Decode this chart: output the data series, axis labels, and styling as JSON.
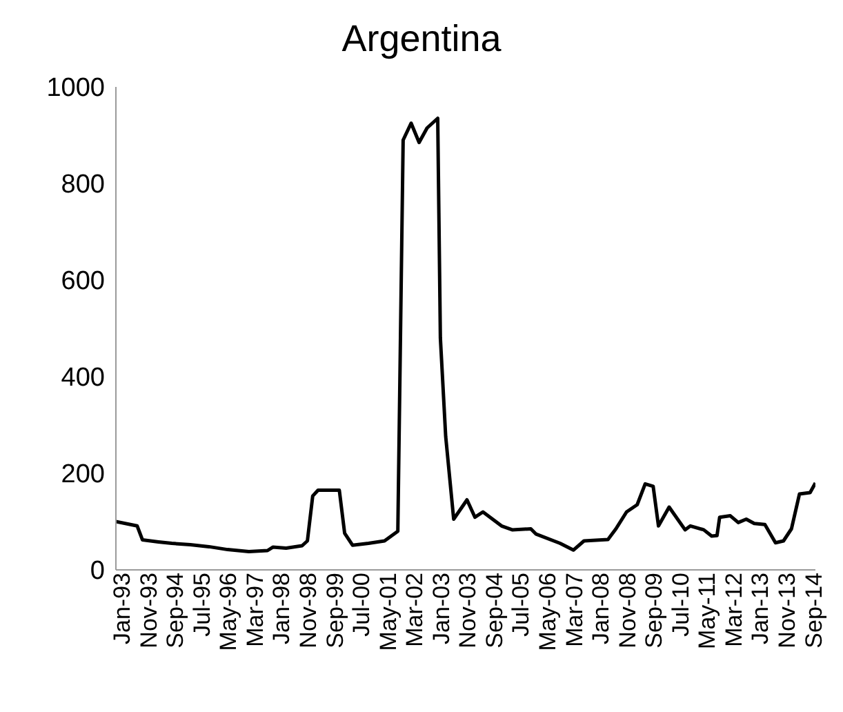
{
  "chart_data": {
    "type": "line",
    "title": "Argentina",
    "xlim": [
      "1993-01",
      "2014-12"
    ],
    "xticks": [
      {
        "value": "1993-01",
        "label": "Jan-93"
      },
      {
        "value": "1993-11",
        "label": "Nov-93"
      },
      {
        "value": "1994-09",
        "label": "Sep-94"
      },
      {
        "value": "1995-07",
        "label": "Jul-95"
      },
      {
        "value": "1996-05",
        "label": "May-96"
      },
      {
        "value": "1997-03",
        "label": "Mar-97"
      },
      {
        "value": "1998-01",
        "label": "Jan-98"
      },
      {
        "value": "1998-11",
        "label": "Nov-98"
      },
      {
        "value": "1999-09",
        "label": "Sep-99"
      },
      {
        "value": "2000-07",
        "label": "Jul-00"
      },
      {
        "value": "2001-05",
        "label": "May-01"
      },
      {
        "value": "2002-03",
        "label": "Mar-02"
      },
      {
        "value": "2003-01",
        "label": "Jan-03"
      },
      {
        "value": "2003-11",
        "label": "Nov-03"
      },
      {
        "value": "2004-09",
        "label": "Sep-04"
      },
      {
        "value": "2005-07",
        "label": "Jul-05"
      },
      {
        "value": "2006-05",
        "label": "May-06"
      },
      {
        "value": "2007-03",
        "label": "Mar-07"
      },
      {
        "value": "2008-01",
        "label": "Jan-08"
      },
      {
        "value": "2008-11",
        "label": "Nov-08"
      },
      {
        "value": "2009-09",
        "label": "Sep-09"
      },
      {
        "value": "2010-07",
        "label": "Jul-10"
      },
      {
        "value": "2011-05",
        "label": "May-11"
      },
      {
        "value": "2012-03",
        "label": "Mar-12"
      },
      {
        "value": "2013-01",
        "label": "Jan-13"
      },
      {
        "value": "2013-11",
        "label": "Nov-13"
      },
      {
        "value": "2014-09",
        "label": "Sep-14"
      }
    ],
    "ylim": [
      0,
      1000
    ],
    "yticks": [
      0,
      200,
      400,
      600,
      800,
      1000
    ],
    "grid": false,
    "legend": false,
    "marker": "none",
    "line_style": "solid",
    "x": [
      "1993-01",
      "1993-09",
      "1993-11",
      "1994-05",
      "1994-10",
      "1995-05",
      "1995-12",
      "1996-07",
      "1997-03",
      "1997-10",
      "1997-12",
      "1998-05",
      "1998-11",
      "1999-01",
      "1999-03",
      "1999-05",
      "2000-01",
      "2000-03",
      "2000-06",
      "2000-12",
      "2001-06",
      "2001-11",
      "2002-01",
      "2002-04",
      "2002-07",
      "2002-10",
      "2003-02",
      "2003-03",
      "2003-05",
      "2003-08",
      "2004-01",
      "2004-04",
      "2004-07",
      "2005-02",
      "2005-06",
      "2006-01",
      "2006-03",
      "2006-12",
      "2007-05",
      "2007-09",
      "2008-06",
      "2008-09",
      "2009-01",
      "2009-05",
      "2009-08",
      "2009-11",
      "2010-01",
      "2010-05",
      "2010-11",
      "2011-01",
      "2011-06",
      "2011-09",
      "2011-11",
      "2011-12",
      "2012-04",
      "2012-07",
      "2012-10",
      "2013-01",
      "2013-05",
      "2013-09",
      "2013-12",
      "2014-03",
      "2014-06",
      "2014-10",
      "2014-12"
    ],
    "series": [
      {
        "color": "#000000",
        "values": [
          100,
          91,
          62,
          58,
          55,
          52,
          48,
          42,
          38,
          40,
          47,
          45,
          50,
          60,
          153,
          165,
          165,
          76,
          51,
          55,
          60,
          80,
          890,
          925,
          885,
          915,
          935,
          480,
          276,
          105,
          145,
          109,
          120,
          91,
          83,
          85,
          74,
          55,
          41,
          60,
          63,
          85,
          120,
          135,
          178,
          173,
          91,
          130,
          83,
          91,
          83,
          70,
          71,
          109,
          112,
          98,
          105,
          96,
          94,
          56,
          60,
          85,
          157,
          160,
          180
        ]
      }
    ]
  }
}
